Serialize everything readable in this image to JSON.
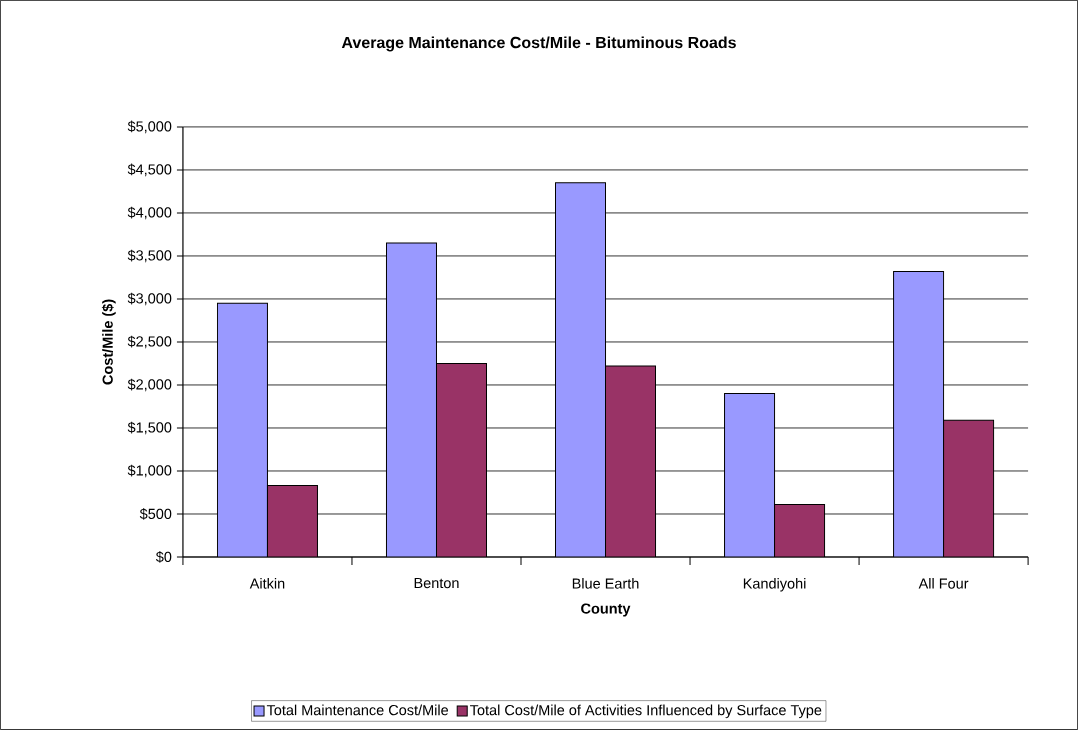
{
  "chart_data": {
    "type": "bar",
    "title": "Average Maintenance Cost/Mile - Bituminous Roads",
    "xlabel": "County",
    "ylabel": "Cost/Mile ($)",
    "categories": [
      "Aitkin",
      "Benton",
      "Blue Earth",
      "Kandiyohi",
      "All Four"
    ],
    "series": [
      {
        "name": "Total Maintenance Cost/Mile",
        "color": "#9999ff",
        "values": [
          2950,
          3650,
          4350,
          1900,
          3320
        ]
      },
      {
        "name": "Total Cost/Mile of Activities Influenced by Surface Type",
        "color": "#993366",
        "values": [
          830,
          2250,
          2220,
          610,
          1590
        ]
      }
    ],
    "ylim": [
      0,
      5000
    ],
    "yticks": [
      {
        "value": 0,
        "label": "$0"
      },
      {
        "value": 500,
        "label": "$500"
      },
      {
        "value": 1000,
        "label": "$1,000"
      },
      {
        "value": 1500,
        "label": "$1,500"
      },
      {
        "value": 2000,
        "label": "$2,000"
      },
      {
        "value": 2500,
        "label": "$2,500"
      },
      {
        "value": 3000,
        "label": "$3,000"
      },
      {
        "value": 3500,
        "label": "$3,500"
      },
      {
        "value": 4000,
        "label": "$4,000"
      },
      {
        "value": 4500,
        "label": "$4,500"
      },
      {
        "value": 5000,
        "label": "$5,000"
      }
    ],
    "grid": "y",
    "legend": "bottom"
  }
}
